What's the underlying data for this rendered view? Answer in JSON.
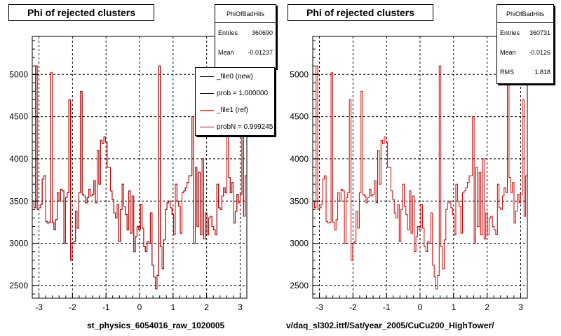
{
  "chart_data": [
    {
      "type": "histogram",
      "title": "Phi of rejected clusters",
      "xlabel": "st_physics_6054016_raw_1020005",
      "xlim": [
        -3.2,
        3.2
      ],
      "ylim": [
        2350,
        5450
      ],
      "x_ticks": [
        "-3",
        "-2",
        "-1",
        "0",
        "1",
        "2",
        "3"
      ],
      "y_ticks": [
        "2500",
        "3000",
        "3500",
        "4000",
        "4500",
        "5000"
      ],
      "grid": true,
      "stats": {
        "name": "PhiOfBadHits",
        "rows": [
          {
            "label": "Entries",
            "value": "360690"
          },
          {
            "label": "Mean",
            "value": "-0.01237"
          }
        ]
      },
      "legend": [
        {
          "label": "_file0 (new)",
          "color": "#000000"
        },
        {
          "label": "prob = 1.000000",
          "color": "#000000"
        },
        {
          "label": "_file1 (ref)",
          "color": "#cc0000"
        },
        {
          "label": "probN = 0.999245",
          "color": "#cc0000"
        }
      ],
      "series": [
        {
          "name": "_file0 (new)",
          "color": "#000000",
          "y": [
            3500,
            3420,
            5100,
            3400,
            3420,
            3460,
            3760,
            3800,
            3260,
            3240,
            3250,
            5020,
            3250,
            3160,
            3280,
            3600,
            3500,
            3640,
            3620,
            3000,
            3540,
            3600,
            4700,
            2800,
            3000,
            3020,
            3380,
            3180,
            3600,
            4800,
            3580,
            3560,
            3480,
            3540,
            3640,
            3560,
            3580,
            3740,
            3480,
            4100,
            3700,
            4220,
            4180,
            4260,
            4200,
            3900,
            3900,
            3620,
            3520,
            3360,
            3300,
            3460,
            3020,
            3400,
            3700,
            3440,
            3340,
            3160,
            3620,
            3120,
            3560,
            2900,
            3080,
            3200,
            3160,
            3460,
            3180,
            2960,
            2900,
            3020,
            3000,
            3360,
            2740,
            2600,
            2460,
            2620,
            5100,
            2960,
            2700,
            3040,
            3400,
            3480,
            3500,
            3420,
            3340,
            3100,
            3700,
            3500,
            3440,
            3120,
            3600,
            3620,
            3660,
            3720,
            3800,
            3800,
            4500,
            3000,
            3900,
            3200,
            3840,
            3100,
            4000,
            3050,
            3360,
            3100,
            3300,
            3320,
            3200,
            3160,
            3100,
            3700,
            3420,
            3400,
            3560,
            3660,
            3600,
            5260,
            3780,
            3600,
            3720,
            3240,
            3380,
            3580,
            3480,
            3580,
            4700,
            3320,
            3800
          ]
        },
        {
          "name": "_file1 (ref)",
          "color": "#cc0000",
          "y": [
            3500,
            3420,
            5100,
            3400,
            3420,
            3460,
            3760,
            3800,
            3260,
            3240,
            3250,
            5020,
            3250,
            3160,
            3280,
            3600,
            3500,
            3640,
            3620,
            3000,
            3540,
            3600,
            4700,
            2800,
            3000,
            3020,
            3380,
            3180,
            3600,
            4800,
            3580,
            3560,
            3480,
            3540,
            3640,
            3560,
            3580,
            3740,
            3480,
            4100,
            3700,
            4220,
            4180,
            4260,
            4200,
            3900,
            3900,
            3620,
            3520,
            3360,
            3300,
            3460,
            3020,
            3400,
            3700,
            3440,
            3340,
            3160,
            3620,
            3120,
            3560,
            2900,
            3080,
            3200,
            3160,
            3460,
            3180,
            2960,
            2900,
            3020,
            3000,
            3360,
            2740,
            2600,
            2460,
            2620,
            5100,
            2960,
            2700,
            3040,
            3400,
            3480,
            3500,
            3420,
            3340,
            3100,
            3700,
            3500,
            3440,
            3120,
            3600,
            3620,
            3660,
            3720,
            3800,
            3800,
            4500,
            3000,
            3900,
            3200,
            3840,
            3100,
            4000,
            3050,
            3360,
            3100,
            3300,
            3320,
            3200,
            3160,
            3100,
            3700,
            3420,
            3400,
            3560,
            3660,
            3600,
            5260,
            3780,
            3600,
            3720,
            3240,
            3380,
            3580,
            3480,
            3580,
            4700,
            3320,
            3800
          ]
        }
      ]
    },
    {
      "type": "histogram",
      "title": "Phi of rejected clusters",
      "xlabel": "v/daq_sl302.ittf/Sat/year_2005/CuCu200_HighTower/",
      "xlim": [
        -3.2,
        3.2
      ],
      "ylim": [
        2350,
        5450
      ],
      "x_ticks": [
        "-3",
        "-2",
        "-1",
        "0",
        "1",
        "2",
        "3"
      ],
      "y_ticks": [
        "2500",
        "3000",
        "3500",
        "4000",
        "4500",
        "5000"
      ],
      "grid": true,
      "stats": {
        "name": "PhiOfBadHits",
        "rows": [
          {
            "label": "Entries",
            "value": "360731"
          },
          {
            "label": "Mean",
            "value": "-0.0126"
          },
          {
            "label": "RMS",
            "value": "1.818"
          }
        ]
      },
      "series": [
        {
          "name": "",
          "color": "#cc0000",
          "y": [
            3500,
            3420,
            5100,
            3400,
            3420,
            3460,
            3760,
            3800,
            3260,
            3240,
            3250,
            5020,
            3250,
            3160,
            3280,
            3600,
            3500,
            3640,
            3620,
            3000,
            3540,
            3600,
            4700,
            2800,
            3000,
            3020,
            3380,
            3180,
            3600,
            4800,
            3580,
            3560,
            3480,
            3540,
            3640,
            3560,
            3580,
            3740,
            3480,
            4100,
            3700,
            4220,
            4180,
            4260,
            4200,
            3900,
            3900,
            3620,
            3520,
            3360,
            3300,
            3460,
            3020,
            3400,
            3700,
            3440,
            3340,
            3160,
            3620,
            3120,
            3560,
            2900,
            3080,
            3200,
            3160,
            3460,
            3180,
            2960,
            2900,
            3020,
            3000,
            3360,
            2740,
            2600,
            2460,
            2620,
            5100,
            2960,
            2700,
            3040,
            3400,
            3480,
            3500,
            3420,
            3340,
            3100,
            3700,
            3500,
            3440,
            3120,
            3600,
            3620,
            3660,
            3720,
            3800,
            3800,
            4500,
            3000,
            3900,
            3200,
            3840,
            3100,
            4000,
            3050,
            3360,
            3100,
            3300,
            3320,
            3200,
            3160,
            3100,
            3700,
            3420,
            3400,
            3560,
            3660,
            3600,
            5260,
            3780,
            3600,
            3720,
            3240,
            3380,
            3580,
            3480,
            3580,
            4700,
            3320,
            3800
          ]
        }
      ]
    }
  ]
}
